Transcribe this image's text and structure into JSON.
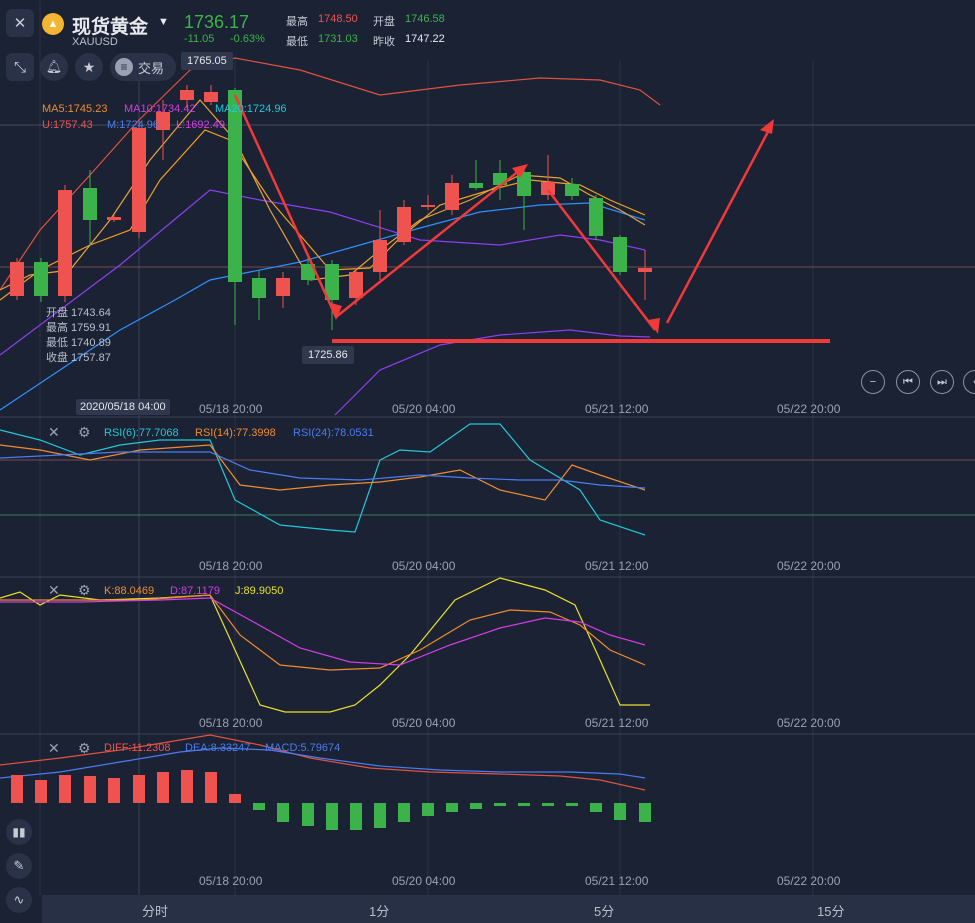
{
  "header": {
    "title": "现货黄金",
    "symbol": "XAUUSD",
    "price": "1736.17",
    "change": "-11.05",
    "change_pct": "-0.63%",
    "high_label": "最高",
    "high": "1748.50",
    "open_label": "开盘",
    "open": "1746.58",
    "low_label": "最低",
    "low": "1731.03",
    "prev_label": "昨收",
    "prev": "1747.22",
    "trade_label": "交易"
  },
  "main": {
    "ma5": "MA5:1745.23",
    "ma10": "MA10:1734.42",
    "ma20": "MA20:1724.96",
    "boll_u": "U:1757.43",
    "boll_m": "M:1724.96",
    "boll_l": "L:1692.49",
    "high_tag": "1765.05",
    "low_tag": "1725.86",
    "ohlc": [
      "开盘 1743.64",
      "最高 1759.91",
      "最低 1740.89",
      "收盘 1757.87"
    ],
    "cursor_date": "2020/05/18 04:00"
  },
  "time_labels": [
    "05/18 20:00",
    "05/20 04:00",
    "05/21 12:00",
    "05/22 20:00"
  ],
  "rsi": {
    "r6": "RSI(6):77.7068",
    "r14": "RSI(14):77.3998",
    "r24": "RSI(24):78.0531"
  },
  "kdj": {
    "k": "K:88.0469",
    "d": "D:87.1179",
    "j": "J:89.9050"
  },
  "macd": {
    "diff": "DIFF:11.2308",
    "dea": "DEA:8.33247",
    "macd": "MACD:5.79674"
  },
  "periods": [
    "分时",
    "1分",
    "5分",
    "15分"
  ],
  "colors": {
    "up": "#ef5350",
    "down": "#3cb34a",
    "bg": "#1b2233",
    "price_green": "#3cb34a",
    "arrow": "#f03a3a"
  },
  "icons": [
    "close-icon",
    "logo-icon",
    "dropdown-icon",
    "expand-icon",
    "bell-icon",
    "star-icon",
    "trade-icon",
    "zoom-out-icon",
    "first-icon",
    "last-icon",
    "prev-icon",
    "settings-icon",
    "candle-icon",
    "draw-icon",
    "indicator-icon"
  ]
}
